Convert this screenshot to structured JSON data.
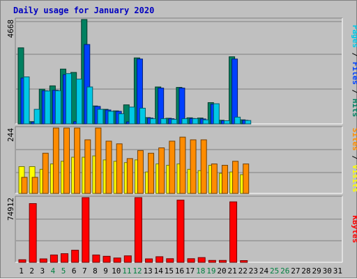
{
  "chart_data": {
    "type": "bar",
    "title": "Daily usage for January 2020",
    "days": [
      "1",
      "2",
      "3",
      "4",
      "5",
      "6",
      "7",
      "8",
      "9",
      "10",
      "11",
      "12",
      "13",
      "14",
      "15",
      "16",
      "17",
      "18",
      "19",
      "20",
      "21",
      "22",
      "23",
      "24",
      "25",
      "26",
      "27",
      "28",
      "29",
      "30",
      "31"
    ],
    "weekend_days": [
      "4",
      "5",
      "11",
      "12",
      "18",
      "19",
      "25",
      "26"
    ],
    "panels": [
      {
        "name": "hits-files-pages",
        "ymax": 4668,
        "ymax_label": "4668",
        "right_label_parts": [
          {
            "text": "Pages",
            "color": "#00c8e6"
          },
          {
            "text": " / ",
            "color": "#000000"
          },
          {
            "text": "Files",
            "color": "#0040ff"
          },
          {
            "text": " / ",
            "color": "#000000"
          },
          {
            "text": "Hits",
            "color": "#008060"
          }
        ],
        "series": [
          {
            "name": "Hits",
            "color": "#008060",
            "values": [
              3400,
              100,
              1550,
              1700,
              2450,
              2300,
              4668,
              800,
              650,
              580,
              850,
              2950,
              280,
              1650,
              250,
              1630,
              270,
              260,
              950,
              160,
              3000,
              180,
              0,
              0,
              0,
              0,
              0,
              0,
              0,
              0,
              0
            ]
          },
          {
            "name": "Files",
            "color": "#0040ff",
            "values": [
              2050,
              80,
              1480,
              1500,
              2200,
              100,
              3550,
              780,
              620,
              560,
              90,
              2900,
              260,
              1600,
              230,
              1600,
              240,
              220,
              880,
              140,
              2900,
              160,
              0,
              0,
              0,
              0,
              0,
              0,
              0,
              0,
              0
            ]
          },
          {
            "name": "Pages",
            "color": "#00c8e6",
            "values": [
              2100,
              650,
              1470,
              1480,
              2250,
              2000,
              1650,
              650,
              560,
              450,
              750,
              700,
              230,
              230,
              200,
              230,
              230,
              180,
              900,
              140,
              300,
              150,
              0,
              0,
              0,
              0,
              0,
              0,
              0,
              0,
              0
            ]
          }
        ]
      },
      {
        "name": "visits-sites",
        "ymax": 244,
        "ymax_label": "244",
        "right_label_parts": [
          {
            "text": "Sites",
            "color": "#ff8c00"
          },
          {
            "text": " / ",
            "color": "#000000"
          },
          {
            "text": "Visits",
            "color": "#ffff00"
          }
        ],
        "series": [
          {
            "name": "Visits",
            "color": "#ffff00",
            "values": [
              100,
              100,
              90,
              110,
              120,
              135,
              135,
              140,
              125,
              120,
              115,
              125,
              80,
              110,
              105,
              110,
              90,
              85,
              105,
              75,
              80,
              70,
              0,
              0,
              0,
              0,
              0,
              0,
              0,
              0,
              0
            ]
          },
          {
            "name": "Sites",
            "color": "#ff8c00",
            "values": [
              60,
              60,
              150,
              244,
              244,
              244,
              200,
              244,
              195,
              185,
              130,
              160,
              150,
              170,
              195,
              210,
              200,
              200,
              110,
              105,
              120,
              110,
              0,
              0,
              0,
              0,
              0,
              0,
              0,
              0,
              0
            ]
          }
        ]
      },
      {
        "name": "kbytes",
        "ymax": 74912,
        "ymax_label": "74912",
        "right_label_parts": [
          {
            "text": "KBytes",
            "color": "#ff0000"
          }
        ],
        "series": [
          {
            "name": "KBytes",
            "color": "#ff0000",
            "values": [
              3000,
              68000,
              4000,
              8500,
              10000,
              14000,
              74912,
              8500,
              7000,
              5000,
              7500,
              74912,
              4000,
              6500,
              4200,
              72000,
              4200,
              5500,
              2200,
              2200,
              70000,
              2000,
              0,
              0,
              0,
              0,
              0,
              0,
              0,
              0,
              0
            ]
          }
        ]
      }
    ]
  }
}
